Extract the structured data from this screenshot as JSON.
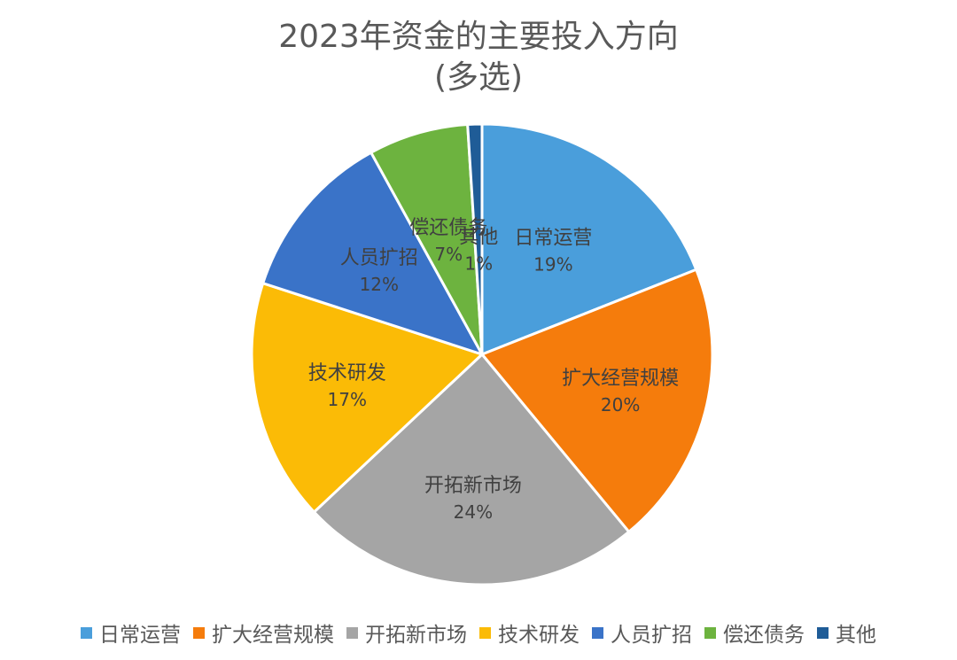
{
  "chart_data": {
    "type": "pie",
    "title": "2023年资金的主要投入方向",
    "subtitle": "(多选)",
    "legend_position": "bottom",
    "slices": [
      {
        "label": "日常运营",
        "value": 19,
        "display": "19%",
        "color": "#4A9EDB"
      },
      {
        "label": "扩大经营规模",
        "value": 20,
        "display": "20%",
        "color": "#F57C0C"
      },
      {
        "label": "开拓新市场",
        "value": 24,
        "display": "24%",
        "color": "#A5A5A5"
      },
      {
        "label": "技术研发",
        "value": 17,
        "display": "17%",
        "color": "#FBBB06"
      },
      {
        "label": "人员扩招",
        "value": 12,
        "display": "12%",
        "color": "#3A73C8"
      },
      {
        "label": "偿还债务",
        "value": 7,
        "display": "7%",
        "color": "#6DB33F"
      },
      {
        "label": "其他",
        "value": 1,
        "display": "1%",
        "color": "#1F5C97"
      }
    ]
  }
}
